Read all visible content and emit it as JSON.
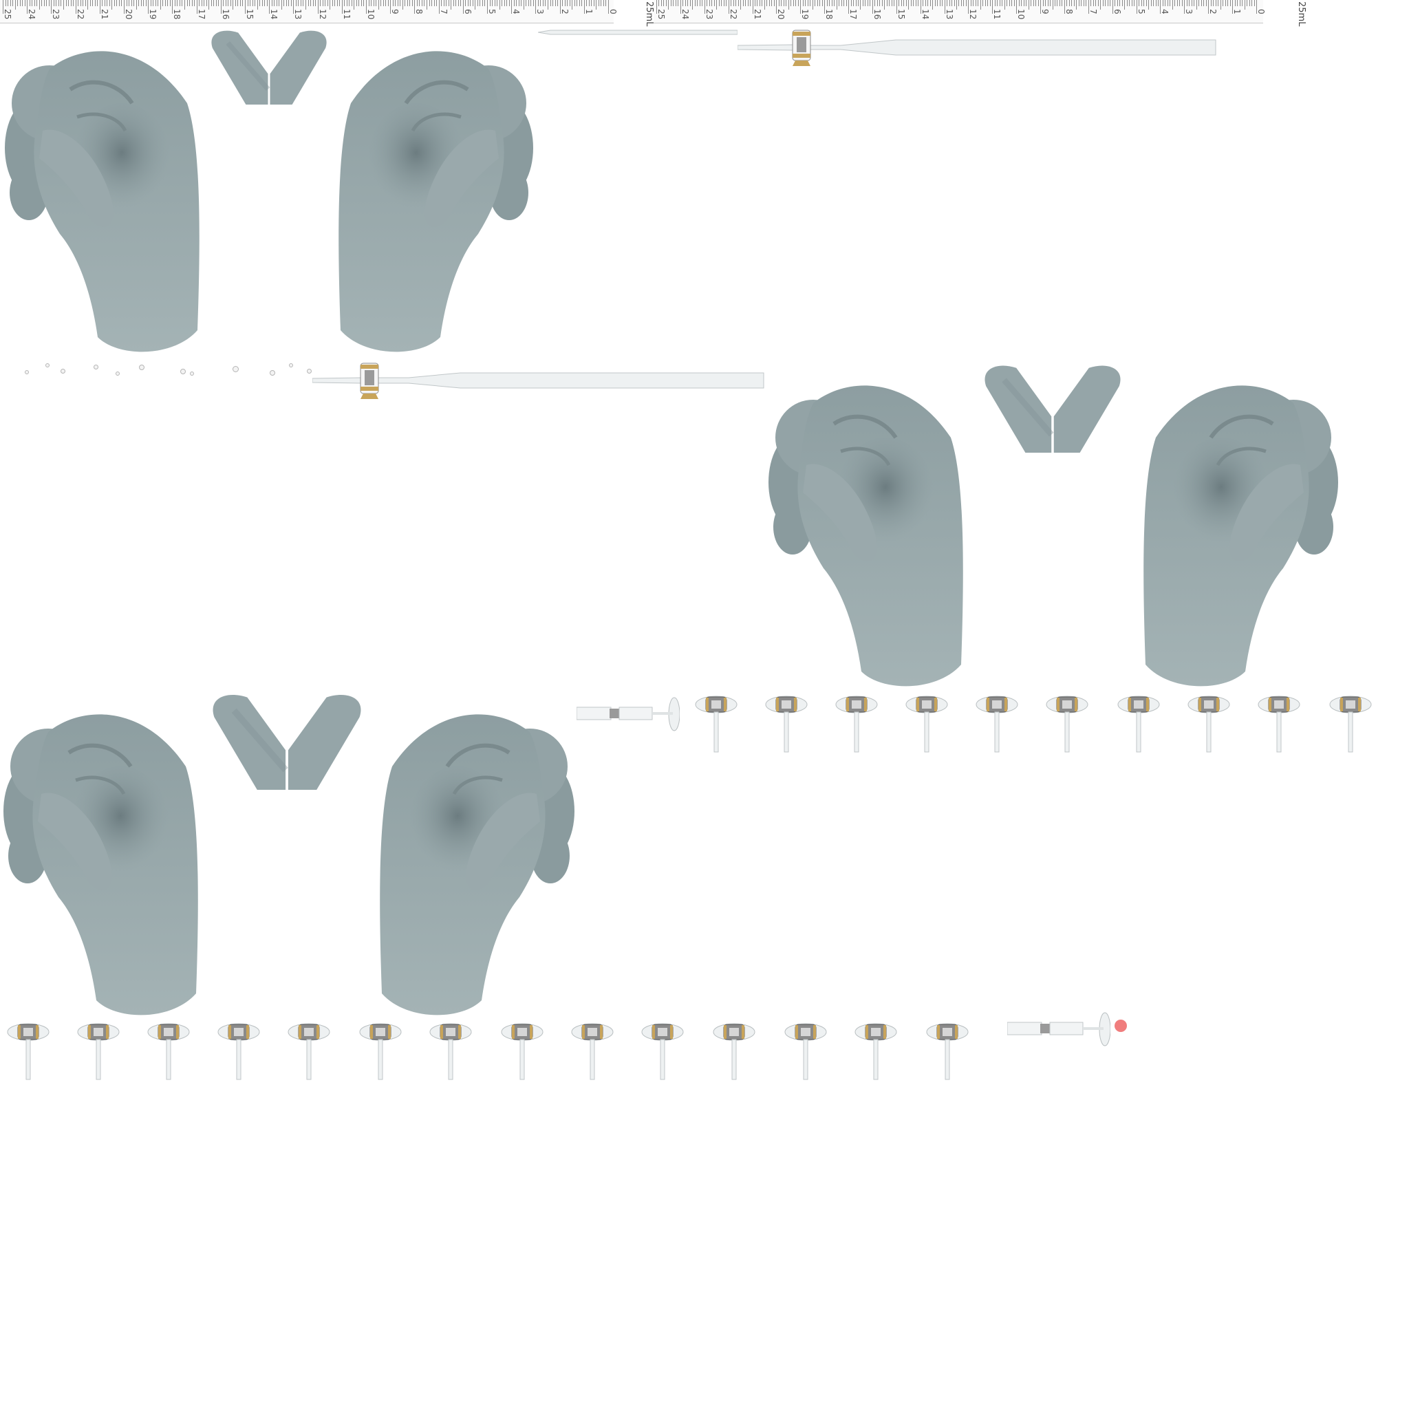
{
  "ruler_a": {
    "unit": "25mL",
    "labels": [
      "25",
      "24",
      "23",
      "22",
      "21",
      "20",
      "19",
      "18",
      "17",
      "16",
      "15",
      "14",
      "13",
      "12",
      "11",
      "10",
      "9",
      "8",
      "7",
      "6",
      "5",
      "4",
      "3",
      "2",
      "1",
      "0"
    ]
  },
  "ruler_b": {
    "unit": "25mL",
    "labels": [
      "25",
      "24",
      "23",
      "22",
      "21",
      "20",
      "19",
      "18",
      "17",
      "16",
      "15",
      "14",
      "13",
      "12",
      "11",
      "10",
      "9",
      "8",
      "7",
      "6",
      "5",
      "4",
      "3",
      "2",
      "1",
      "0"
    ]
  },
  "colors": {
    "hand": "#8f9fa2",
    "hand_shadow": "#6f8084",
    "glass": "#e6e9ea",
    "metal": "#6d6d6d",
    "brass": "#c8a45a",
    "accent": "#f07d7d"
  },
  "icons": {
    "hand": "hand-icon",
    "v_shape": "v-shape-icon",
    "stopcock": "stopcock-icon",
    "pipette": "pipette-icon"
  }
}
